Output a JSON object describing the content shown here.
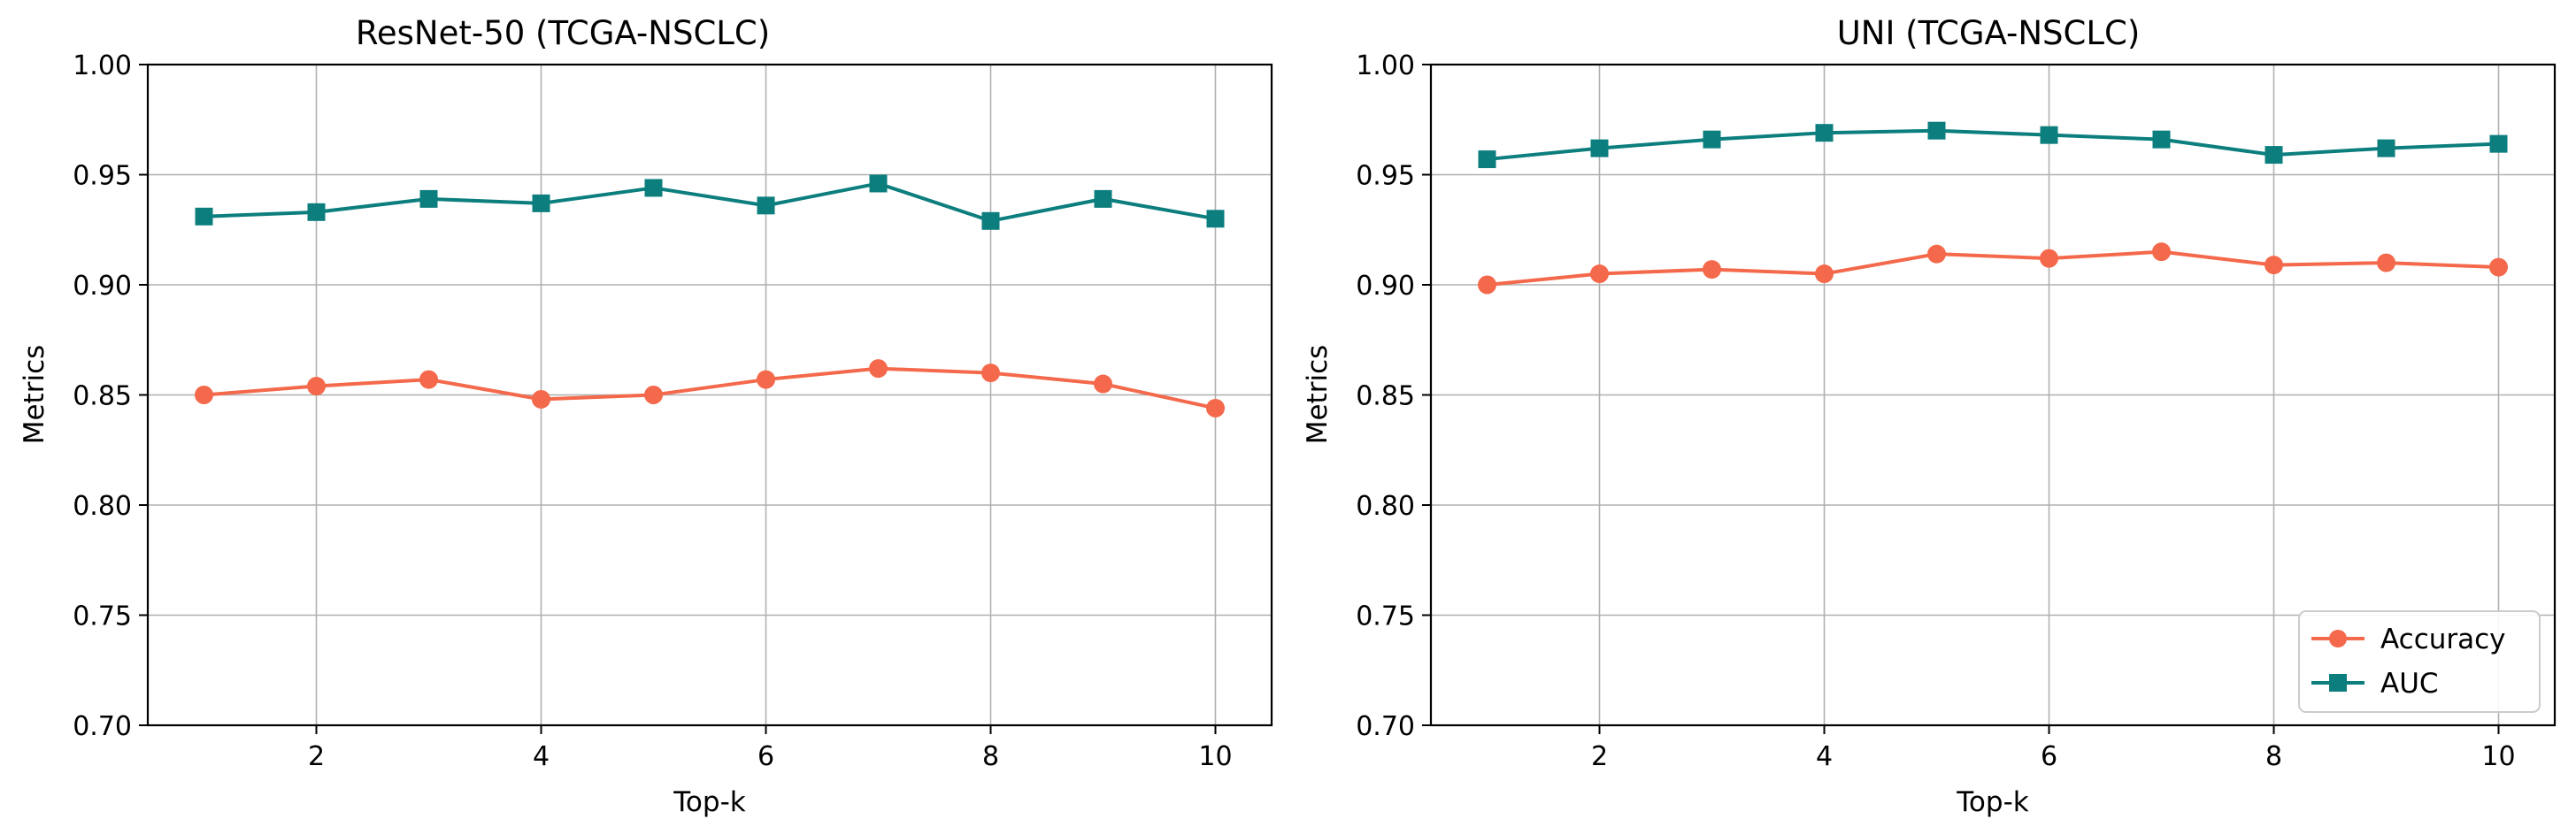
{
  "chart_data": [
    {
      "type": "line",
      "title": "ResNet-50 (TCGA-NSCLC)",
      "xlabel": "Top-k",
      "ylabel": "Metrics",
      "x": [
        1,
        2,
        3,
        4,
        5,
        6,
        7,
        8,
        9,
        10
      ],
      "xticks": [
        2,
        4,
        6,
        8,
        10
      ],
      "xlim": [
        0.5,
        10.5
      ],
      "ylim": [
        0.7,
        1.0
      ],
      "yticks": [
        "0.70",
        "0.75",
        "0.80",
        "0.85",
        "0.90",
        "0.95",
        "1.00"
      ],
      "grid": true,
      "legend": null,
      "series": [
        {
          "name": "Accuracy",
          "marker": "circle",
          "color": "#f4694b",
          "values": [
            0.85,
            0.854,
            0.857,
            0.848,
            0.85,
            0.857,
            0.862,
            0.86,
            0.855,
            0.844
          ]
        },
        {
          "name": "AUC",
          "marker": "square",
          "color": "#0d7e7e",
          "values": [
            0.931,
            0.933,
            0.939,
            0.937,
            0.944,
            0.936,
            0.946,
            0.929,
            0.939,
            0.93
          ]
        }
      ]
    },
    {
      "type": "line",
      "title": "UNI (TCGA-NSCLC)",
      "xlabel": "Top-k",
      "ylabel": "Metrics",
      "x": [
        1,
        2,
        3,
        4,
        5,
        6,
        7,
        8,
        9,
        10
      ],
      "xticks": [
        2,
        4,
        6,
        8,
        10
      ],
      "xlim": [
        0.5,
        10.5
      ],
      "ylim": [
        0.7,
        1.0
      ],
      "yticks": [
        "0.70",
        "0.75",
        "0.80",
        "0.85",
        "0.90",
        "0.95",
        "1.00"
      ],
      "grid": true,
      "legend": "lower-right",
      "series": [
        {
          "name": "Accuracy",
          "marker": "circle",
          "color": "#f4694b",
          "values": [
            0.9,
            0.905,
            0.907,
            0.905,
            0.914,
            0.912,
            0.915,
            0.909,
            0.91,
            0.908
          ]
        },
        {
          "name": "AUC",
          "marker": "square",
          "color": "#0d7e7e",
          "values": [
            0.957,
            0.962,
            0.966,
            0.969,
            0.97,
            0.968,
            0.966,
            0.959,
            0.962,
            0.964
          ]
        }
      ]
    }
  ]
}
